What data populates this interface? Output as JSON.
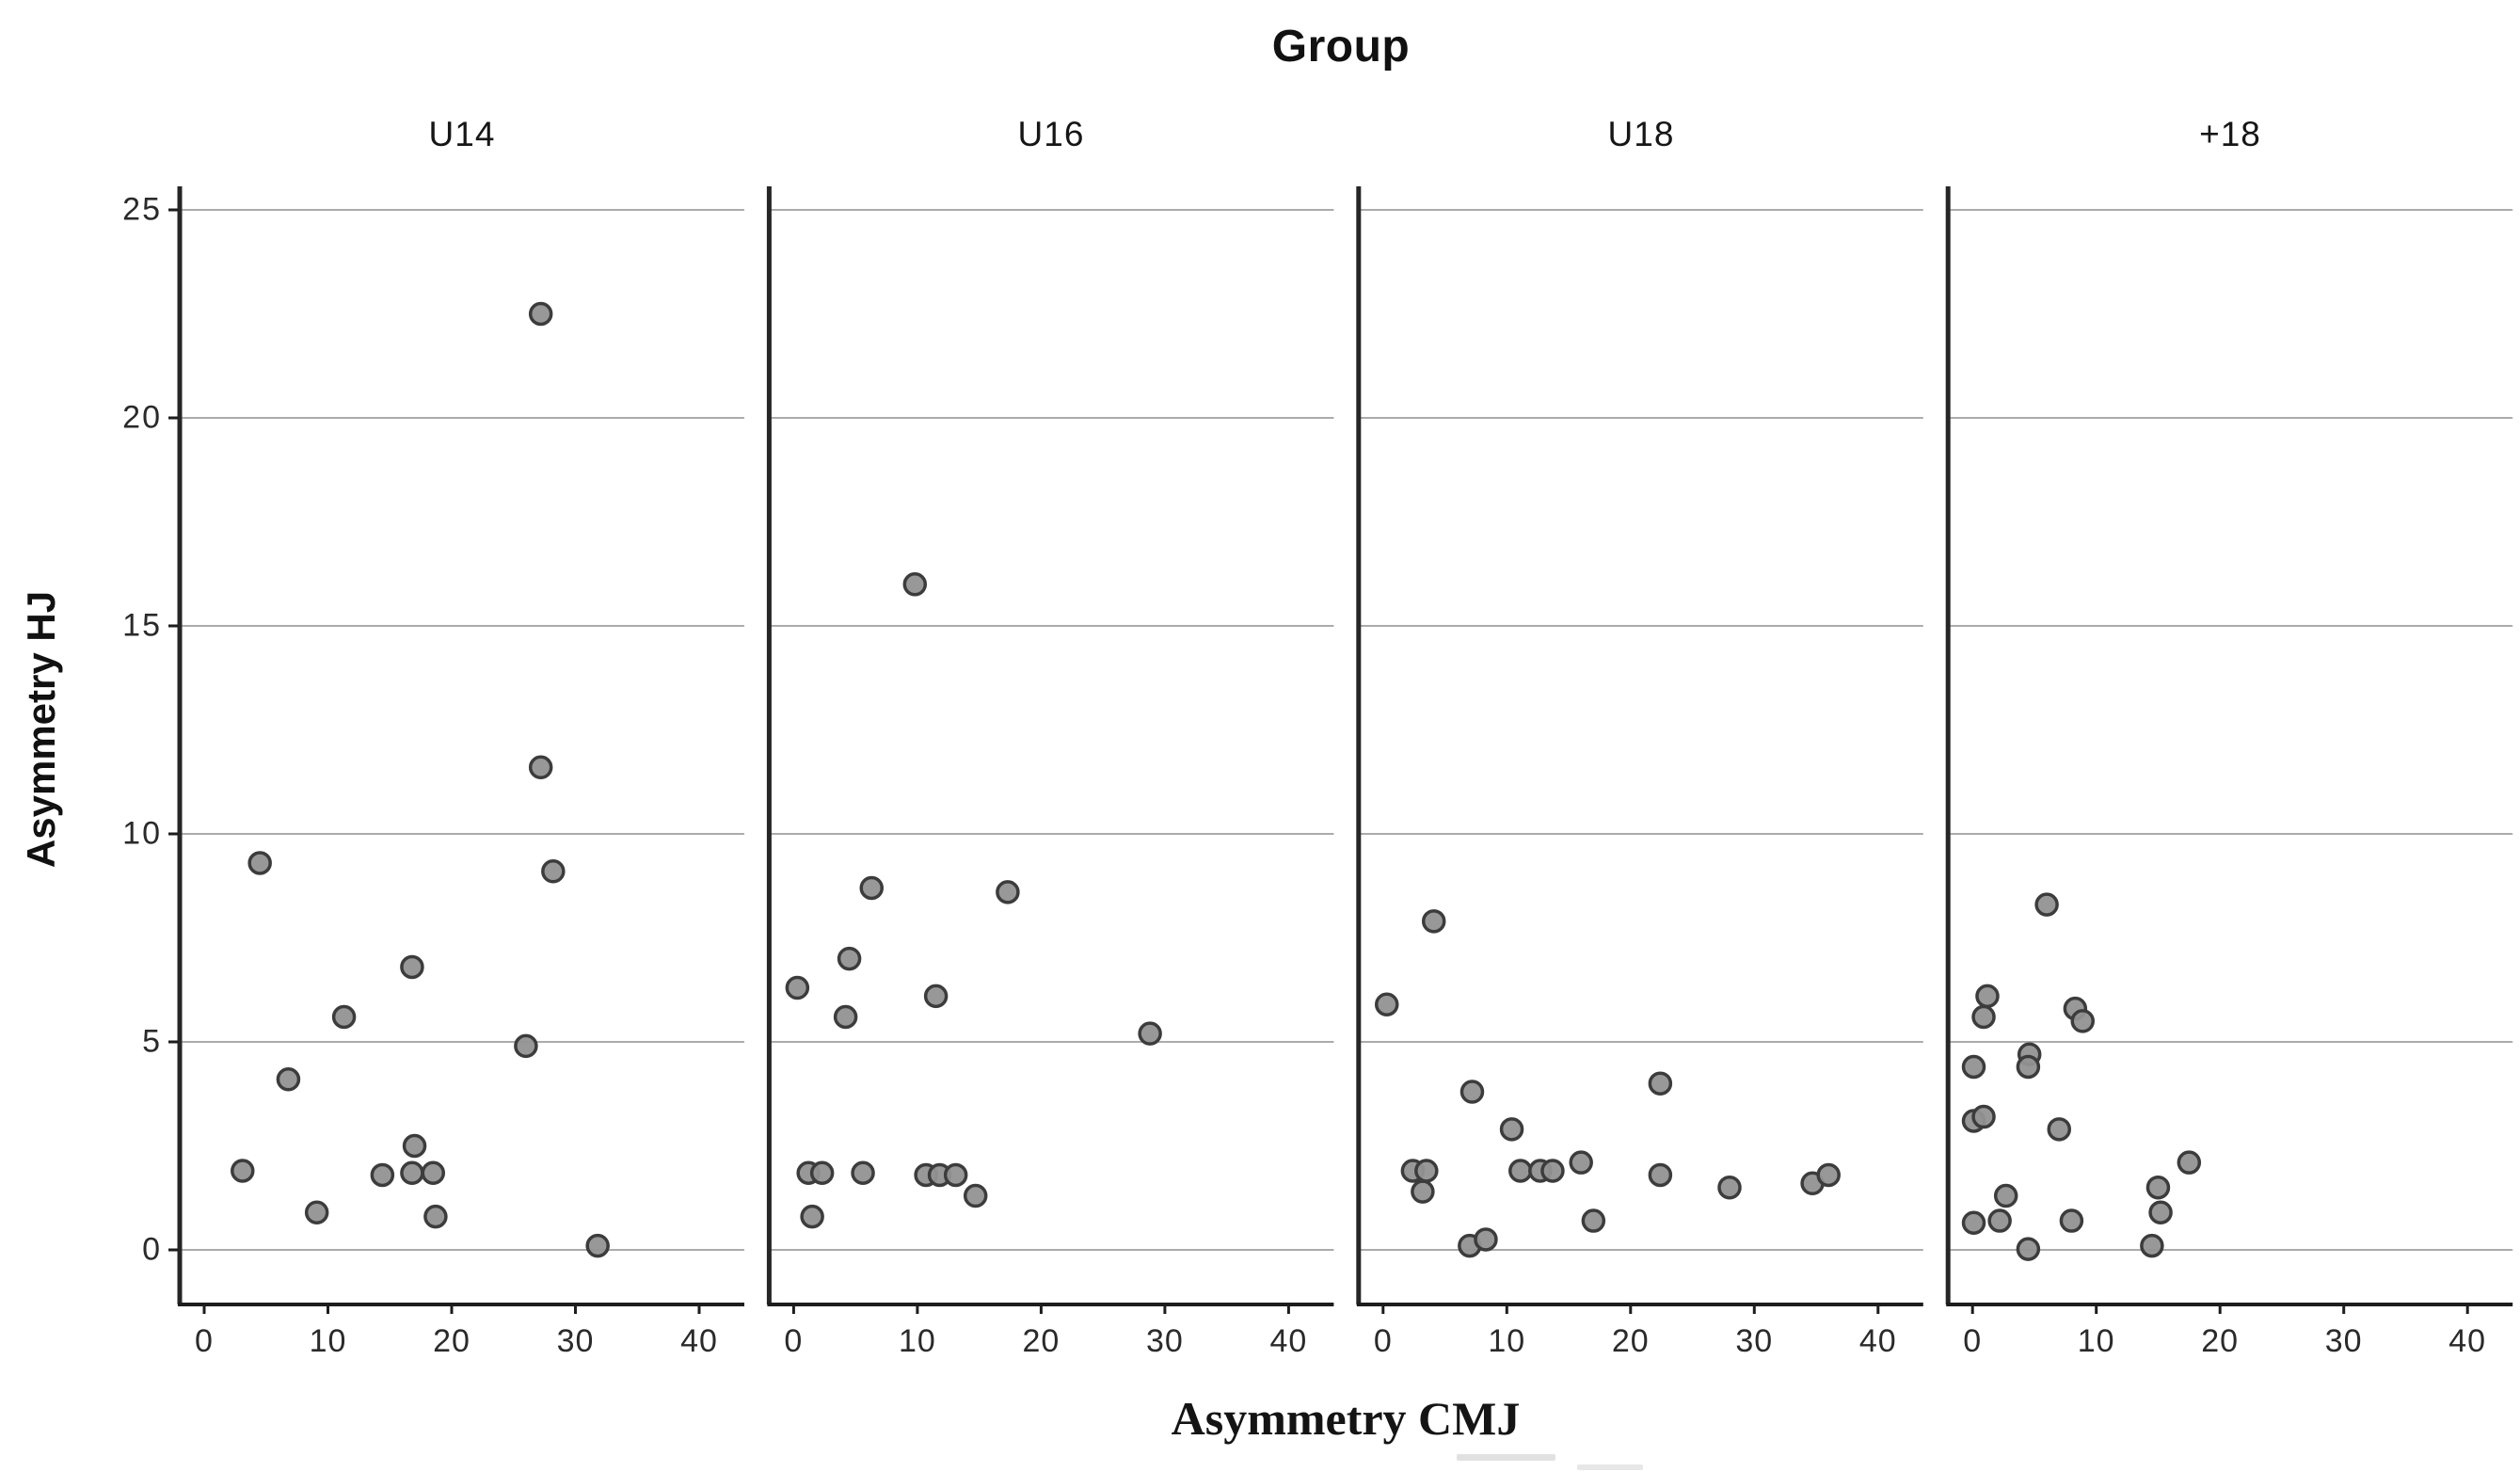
{
  "title": {
    "text": "Group"
  },
  "axes": {
    "y_label": "Asymmetry HJ",
    "x_label": "Asymmetry CMJ",
    "y_ticks": [
      0,
      5,
      10,
      15,
      20,
      25
    ],
    "x_ticks": [
      0,
      10,
      20,
      30,
      40
    ],
    "y_range": [
      0,
      25
    ],
    "x_range": [
      0,
      40
    ]
  },
  "colors": {
    "marker_fill": "#929292",
    "marker_edge": "#3c3c3c",
    "gridline": "#ababab",
    "panel_border": "#262626",
    "axis_line": "#1d1d1d",
    "text": "#161616",
    "background": "#ffffff"
  },
  "chart_data": {
    "type": "scatter",
    "title": "Group",
    "xlabel": "Asymmetry CMJ",
    "ylabel": "Asymmetry HJ",
    "x_ticks": [
      0,
      10,
      20,
      30,
      40
    ],
    "y_ticks": [
      0,
      5,
      10,
      15,
      20,
      25
    ],
    "xlim": [
      0,
      40
    ],
    "ylim": [
      0,
      25
    ],
    "grid": "horizontal-only",
    "legend": "none",
    "marker": {
      "shape": "circle",
      "fill": "#929292",
      "edge": "#3c3c3c"
    },
    "facets": [
      {
        "label": "U14",
        "points": [
          [
            27.2,
            22.5
          ],
          [
            27.2,
            11.6
          ],
          [
            4.5,
            9.3
          ],
          [
            28.2,
            9.1
          ],
          [
            16.8,
            6.8
          ],
          [
            11.3,
            5.6
          ],
          [
            26.0,
            4.9
          ],
          [
            6.8,
            4.1
          ],
          [
            17.0,
            2.5
          ],
          [
            3.1,
            1.9
          ],
          [
            14.4,
            1.8
          ],
          [
            16.8,
            1.85
          ],
          [
            18.5,
            1.85
          ],
          [
            9.1,
            0.9
          ],
          [
            18.7,
            0.8
          ],
          [
            31.8,
            0.1
          ]
        ]
      },
      {
        "label": "U16",
        "points": [
          [
            9.8,
            16.0
          ],
          [
            6.3,
            8.7
          ],
          [
            17.3,
            8.6
          ],
          [
            4.5,
            7.0
          ],
          [
            0.3,
            6.3
          ],
          [
            11.5,
            6.1
          ],
          [
            4.2,
            5.6
          ],
          [
            28.8,
            5.2
          ],
          [
            1.2,
            1.85
          ],
          [
            2.3,
            1.85
          ],
          [
            5.6,
            1.85
          ],
          [
            10.7,
            1.8
          ],
          [
            11.8,
            1.8
          ],
          [
            13.1,
            1.8
          ],
          [
            14.7,
            1.3
          ],
          [
            1.5,
            0.8
          ]
        ]
      },
      {
        "label": "U18",
        "points": [
          [
            4.1,
            7.9
          ],
          [
            0.3,
            5.9
          ],
          [
            22.4,
            4.0
          ],
          [
            7.2,
            3.8
          ],
          [
            10.4,
            2.9
          ],
          [
            2.4,
            1.9
          ],
          [
            3.5,
            1.9
          ],
          [
            3.2,
            1.4
          ],
          [
            11.1,
            1.9
          ],
          [
            12.7,
            1.9
          ],
          [
            13.7,
            1.9
          ],
          [
            16.0,
            2.1
          ],
          [
            22.4,
            1.8
          ],
          [
            28.0,
            1.5
          ],
          [
            34.7,
            1.6
          ],
          [
            36.0,
            1.8
          ],
          [
            17.0,
            0.7
          ],
          [
            7.0,
            0.1
          ],
          [
            8.3,
            0.25
          ]
        ]
      },
      {
        "label": "+18",
        "points": [
          [
            6.0,
            8.3
          ],
          [
            1.2,
            6.1
          ],
          [
            0.9,
            5.6
          ],
          [
            8.3,
            5.8
          ],
          [
            8.9,
            5.5
          ],
          [
            0.1,
            4.4
          ],
          [
            4.6,
            4.7
          ],
          [
            4.5,
            4.4
          ],
          [
            0.1,
            3.1
          ],
          [
            0.9,
            3.2
          ],
          [
            7.0,
            2.9
          ],
          [
            2.7,
            1.3
          ],
          [
            17.5,
            2.1
          ],
          [
            15.0,
            1.5
          ],
          [
            15.2,
            0.9
          ],
          [
            14.5,
            0.1
          ],
          [
            0.1,
            0.65
          ],
          [
            2.2,
            0.7
          ],
          [
            4.5,
            0.02
          ],
          [
            8.0,
            0.7
          ]
        ]
      }
    ]
  }
}
